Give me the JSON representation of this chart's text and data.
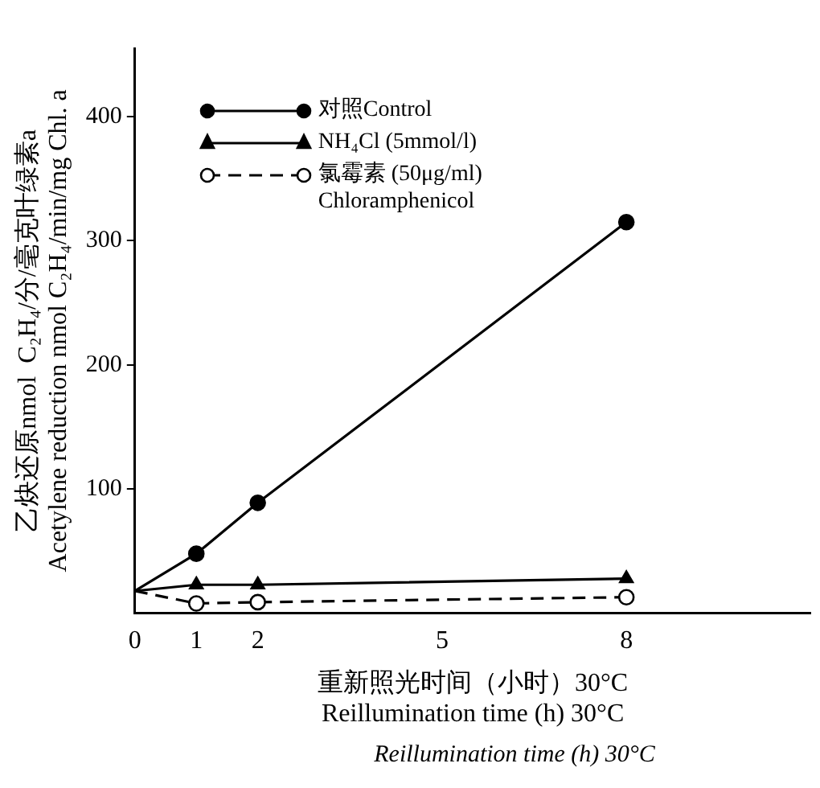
{
  "chart_data": {
    "type": "line",
    "xlabel": "重新照光时间（小时）30°C\nReillumination time (h) 30°C",
    "ylabel": "乙炔还原nmol  C₂H₄/分/毫克叶绿素a\nAcetylene reduction nmol C₂H₄/min/mg Chl. a",
    "x": [
      0,
      1,
      2,
      8
    ],
    "series": [
      {
        "name": "对照Control",
        "color": "#000000",
        "marker": "circle",
        "line_style": "solid",
        "values": [
          18,
          48,
          89,
          315
        ]
      },
      {
        "name": "NH₄Cl (5mmol/l)",
        "color": "#000000",
        "marker": "triangle",
        "line_style": "solid",
        "values": [
          18,
          23,
          23,
          28
        ]
      },
      {
        "name": "氯霉素 (50μg/ml)\nChloramphenicol",
        "color": "#000000",
        "marker": "circle",
        "line_style": "dashed",
        "values": [
          18,
          8,
          9,
          13
        ]
      }
    ],
    "xlim": [
      0,
      11
    ],
    "xticks": [
      0,
      1,
      2,
      5,
      8
    ],
    "ylim": [
      0,
      455
    ],
    "yticks": [
      100,
      200,
      300,
      400
    ],
    "grid": false,
    "legend": "top left",
    "annotations": [
      "Reillumination time (h) 30°C"
    ]
  }
}
